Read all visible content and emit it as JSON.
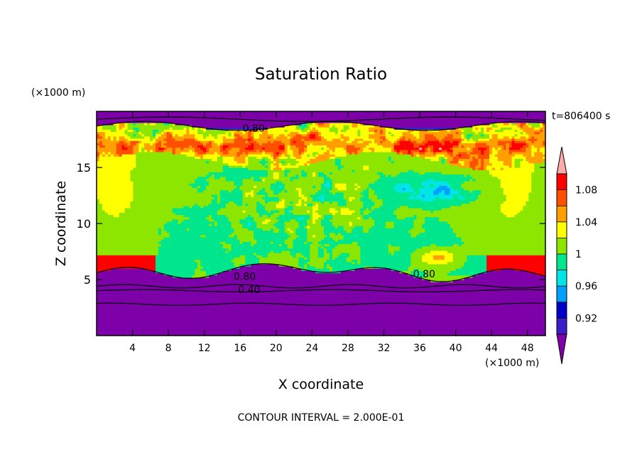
{
  "chart_data": {
    "type": "heatmap",
    "title": "Saturation Ratio",
    "time_label": "t=806400 s",
    "xlabel": "X coordinate",
    "ylabel": "Z coordinate",
    "x_unit": "(×1000 m)",
    "y_unit": "(×1000 m)",
    "footer": "CONTOUR INTERVAL = 2.000E-01",
    "xlim": [
      0,
      50
    ],
    "ylim": [
      0,
      20
    ],
    "x_ticks": [
      "4",
      "8",
      "12",
      "16",
      "20",
      "24",
      "28",
      "32",
      "36",
      "40",
      "44",
      "48"
    ],
    "x_tick_values": [
      4,
      8,
      12,
      16,
      20,
      24,
      28,
      32,
      36,
      40,
      44,
      48
    ],
    "y_ticks": [
      "5",
      "10",
      "15"
    ],
    "y_tick_values": [
      5,
      10,
      15
    ],
    "colorbar": {
      "levels": [
        0.9,
        0.92,
        0.94,
        0.96,
        0.98,
        1.0,
        1.02,
        1.04,
        1.06,
        1.08,
        1.1
      ],
      "tick_labels": [
        "0.92",
        "0.96",
        "1",
        "1.04",
        "1.08"
      ],
      "tick_values": [
        0.92,
        0.96,
        1.0,
        1.04,
        1.08
      ],
      "colors": [
        "#7d00a8",
        "#3c1ec8",
        "#0000c8",
        "#00a0ff",
        "#00e6e6",
        "#00e68c",
        "#8ce600",
        "#ffff00",
        "#ffa000",
        "#ff5000",
        "#ff0000",
        "#ffaaaa"
      ]
    },
    "contour_labels": [
      {
        "text": "0.80",
        "x": 17.5,
        "y": 18.5
      },
      {
        "text": "0.80",
        "x": 16.5,
        "y": 5.3
      },
      {
        "text": "0.80",
        "x": 36.5,
        "y": 5.5
      },
      {
        "text": "0.40",
        "x": 17.0,
        "y": 4.1
      }
    ]
  }
}
